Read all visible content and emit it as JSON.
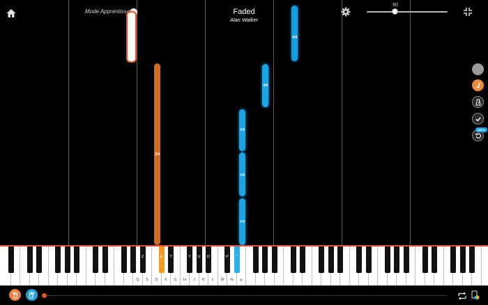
{
  "header": {
    "mode_label": "Mode Apprentissage",
    "song_title": "Faded",
    "song_artist": "Alan Walker",
    "speed_value": "90",
    "icons": {
      "home": "home-icon",
      "mode_toggle": "chevron-down-icon",
      "settings": "gear-icon",
      "fullscreen": "exit-fullscreen-icon"
    }
  },
  "notes": {
    "d_sharp_left": "D#",
    "f_sharp_1": "F#",
    "f_sharp_2": "F#",
    "f_sharp_3": "F#",
    "a_sharp": "A#",
    "d_sharp_right": "D#"
  },
  "sidebar": {
    "beta_badge": "BETA",
    "icons": [
      "circle-icon",
      "music-note-icon",
      "metronome-icon",
      "check-icon",
      "replay-icon"
    ]
  },
  "keyboard": {
    "black_key_labels": [
      "Z",
      "E",
      "T",
      "Y",
      "U",
      "O",
      "P",
      "*"
    ],
    "white_key_labels": [
      "Q",
      "S",
      "D",
      "F",
      "G",
      "H",
      "J",
      "K",
      "L",
      "M",
      "%",
      "µ"
    ],
    "highlight_colors": {
      "left_hand": "#f39a22",
      "right_hand": "#2ab0ee"
    }
  },
  "footer": {
    "progress": 0.0,
    "icons": [
      "left-hand-icon",
      "right-hand-icon",
      "loop-icon",
      "wait-mode-icon"
    ]
  },
  "colors": {
    "accent_orange": "#e2581f",
    "accent_blue": "#19a6e6",
    "background": "#000000"
  }
}
